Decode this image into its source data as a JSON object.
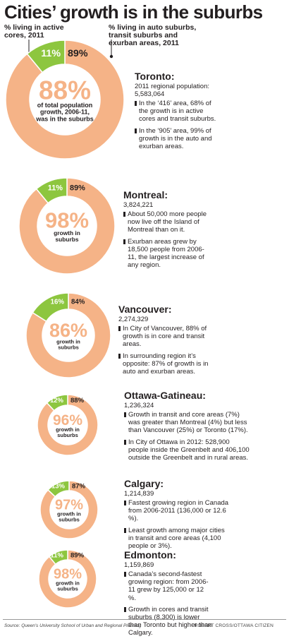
{
  "header": {
    "title": "Cities’ growth is in the suburbs",
    "legend_core": "% living in active cores, 2011",
    "legend_suburbs": "% living in auto suburbs, transit suburbs and exurban areas, 2011"
  },
  "colors": {
    "core": "#8dc63f",
    "suburbs": "#f5b387",
    "center_text": "#f5b387"
  },
  "cities": [
    {
      "name": "Toronto:",
      "population": "2011 regional population: 5,583,064",
      "notes": [
        "In the ‘416’ area, 68% of the growth is in active cores and transit suburbs.",
        "In the ‘905’ area, 99% of growth is in the auto and exurban areas."
      ],
      "core_pct": "11%",
      "suburbs_pct": "89%",
      "growth_pct": "88%",
      "growth_caption": "of total population growth, 2006-11, was in the suburbs"
    },
    {
      "name": "Montreal:",
      "population": "3,824,221",
      "notes": [
        "About 50,000 more people now live off the Island of Montreal than on it.",
        "Exurban areas grew by 18,500 people from 2006-11, the largest increase of any region."
      ],
      "core_pct": "11%",
      "suburbs_pct": "89%",
      "growth_pct": "98%",
      "growth_caption": "growth in suburbs"
    },
    {
      "name": "Vancouver:",
      "population": "2,274,329",
      "notes": [
        "In City of Vancouver, 88% of growth is in core and transit areas.",
        "In surrounding region it’s opposite: 87% of growth is in auto and exurban areas."
      ],
      "core_pct": "16%",
      "suburbs_pct": "84%",
      "growth_pct": "86%",
      "growth_caption": "growth in suburbs"
    },
    {
      "name": "Ottawa-Gatineau:",
      "population": "1,236,324",
      "notes": [
        "Growth in transit and core areas (7%) was greater than Montreal (4%) but less than Vancouver (25%) or Toronto (17%).",
        "In City of Ottawa in 2012: 528,900 people inside the Greenbelt and 406,100 outside the Greenbelt and in rural areas."
      ],
      "core_pct": "12%",
      "suburbs_pct": "88%",
      "growth_pct": "96%",
      "growth_caption": "growth in suburbs"
    },
    {
      "name": "Calgary:",
      "population": "1,214,839",
      "notes": [
        "Fastest growing region in Canada from 2006-2011 (136,000 or 12.6 %).",
        "Least growth among major cities in transit and core areas (4,100 people or 3%)."
      ],
      "core_pct": "13%",
      "suburbs_pct": "87%",
      "growth_pct": "97%",
      "growth_caption": "growth in suburbs"
    },
    {
      "name": "Edmonton:",
      "population": "1,159,869",
      "notes": [
        "Canada’s second-fastest growing region: from 2006-11 grew by 125,000 or 12 %.",
        "Growth in cores and transit suburbs (8,300) is lower than Toronto but higher than Calgary."
      ],
      "core_pct": "11%",
      "suburbs_pct": "89%",
      "growth_pct": "98%",
      "growth_caption": "growth in suburbs"
    }
  ],
  "footer": {
    "source": "Source: Queen’s University School of Urban and Regional Planning",
    "credit": "ROBERT CROSS/OTTAWA CITIZEN"
  },
  "chart_data": {
    "type": "pie",
    "title": "Cities’ growth is in the suburbs",
    "categories": [
      "Toronto",
      "Montreal",
      "Vancouver",
      "Ottawa-Gatineau",
      "Calgary",
      "Edmonton"
    ],
    "series": [
      {
        "name": "% living in active cores, 2011",
        "values": [
          11,
          11,
          16,
          12,
          13,
          11
        ]
      },
      {
        "name": "% living in auto suburbs, transit suburbs and exurban areas, 2011",
        "values": [
          89,
          89,
          84,
          88,
          87,
          89
        ]
      }
    ],
    "suburban_growth_share": [
      88,
      98,
      86,
      96,
      97,
      98
    ],
    "legend": "top"
  }
}
